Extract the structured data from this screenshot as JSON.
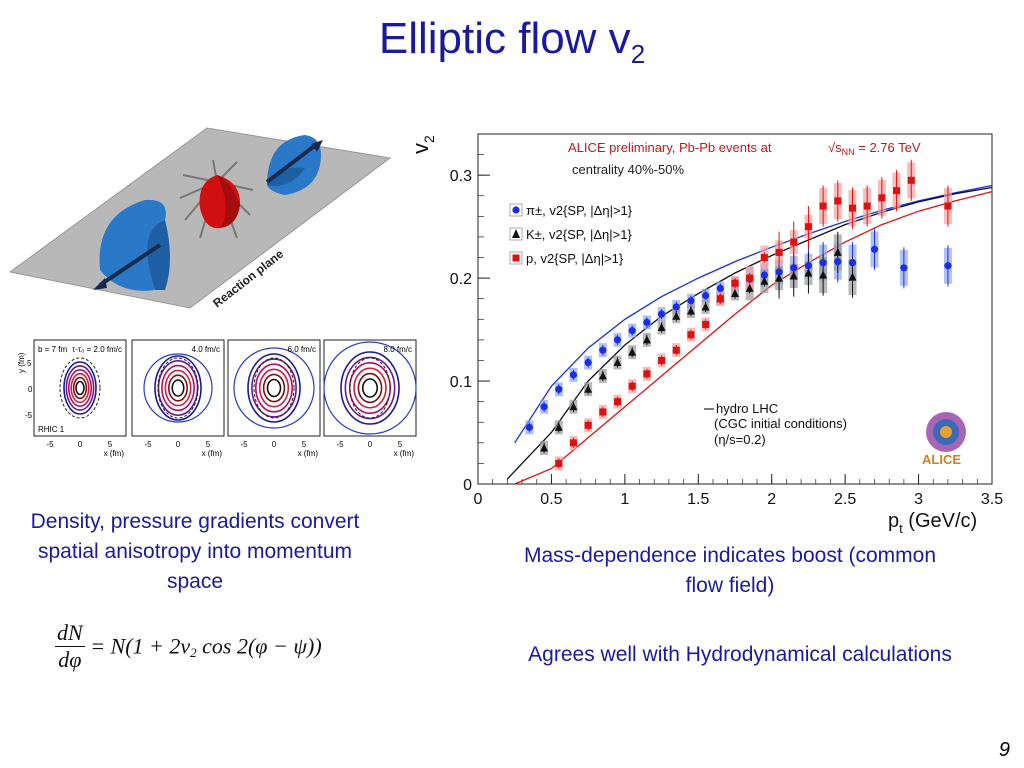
{
  "slide": {
    "title_main": "Elliptic flow v",
    "title_sub": "2",
    "caption_left": "Density, pressure gradients convert spatial anisotropy into momentum space",
    "caption_right": "Mass-dependence indicates boost (common flow field)",
    "caption_bottom": "Agrees well with Hydrodynamical calculations",
    "page_number": "9"
  },
  "formula": {
    "numerator": "dN",
    "denominator": "dφ",
    "rhs": "= N(1 + 2v",
    "rhs_sub": "2",
    "rhs_tail": " cos 2(φ − ψ))"
  },
  "reaction_diagram": {
    "plane_label": "Reaction plane",
    "colors": {
      "plane": "#b5b5b5",
      "nucleus": "#2a78c8",
      "overlap": "#d01010"
    }
  },
  "panels": [
    {
      "label_top": "b = 7 fm",
      "label_time": "τ-τ₀ = 2.0 fm/c",
      "label_bottom": "RHIC 1",
      "xlabel": "x (fm)",
      "ylabel": "y (fm)"
    },
    {
      "label_time": "4.0 fm/c",
      "xlabel": "x (fm)"
    },
    {
      "label_time": "6.0 fm/c",
      "xlabel": "x (fm)"
    },
    {
      "label_time": "8.0 fm/c",
      "xlabel": "x (fm)"
    }
  ],
  "panel_ticks": {
    "x": [
      "-5",
      "0",
      "5"
    ],
    "y": [
      "5",
      "0",
      "-5"
    ]
  },
  "chart_data": {
    "type": "scatter",
    "header": "ALICE preliminary, Pb-Pb events at",
    "energy": "√s",
    "energy_sub": "NN",
    "energy_value": " = 2.76 TeV",
    "centrality": "centrality 40%-50%",
    "xlabel": "p",
    "xlabel_sub": "t",
    "xlabel_unit": " (GeV/c)",
    "ylabel": "v",
    "ylabel_sub": "2",
    "xlim": [
      0,
      3.5
    ],
    "ylim": [
      0,
      0.34
    ],
    "xticks": [
      0,
      0.5,
      1,
      1.5,
      2,
      2.5,
      3,
      3.5
    ],
    "xtick_labels": [
      "0",
      "0.5",
      "1",
      "1.5",
      "2",
      "2.5",
      "3",
      "3.5"
    ],
    "yticks": [
      0,
      0.1,
      0.2,
      0.3
    ],
    "ytick_labels": [
      "0",
      "0.1",
      "0.2",
      "0.3"
    ],
    "series": [
      {
        "name": "π±, v2{SP, |Δη|>1}",
        "color": "#1a2ee6",
        "marker": "circle",
        "x": [
          0.35,
          0.45,
          0.55,
          0.65,
          0.75,
          0.85,
          0.95,
          1.05,
          1.15,
          1.25,
          1.35,
          1.45,
          1.55,
          1.65,
          1.75,
          1.85,
          1.95,
          2.05,
          2.15,
          2.25,
          2.35,
          2.45,
          2.55,
          2.7,
          2.9,
          3.2
        ],
        "y": [
          0.055,
          0.075,
          0.092,
          0.106,
          0.118,
          0.13,
          0.14,
          0.149,
          0.157,
          0.165,
          0.172,
          0.178,
          0.183,
          0.19,
          0.195,
          0.199,
          0.203,
          0.206,
          0.21,
          0.212,
          0.215,
          0.216,
          0.215,
          0.228,
          0.21,
          0.212
        ]
      },
      {
        "name": "K±, v2{SP, |Δη|>1}",
        "color": "#111111",
        "marker": "triangle",
        "x": [
          0.45,
          0.55,
          0.65,
          0.75,
          0.85,
          0.95,
          1.05,
          1.15,
          1.25,
          1.35,
          1.45,
          1.55,
          1.65,
          1.75,
          1.85,
          1.95,
          2.05,
          2.15,
          2.25,
          2.35,
          2.45,
          2.55
        ],
        "y": [
          0.035,
          0.055,
          0.075,
          0.092,
          0.105,
          0.118,
          0.128,
          0.14,
          0.152,
          0.163,
          0.168,
          0.172,
          0.18,
          0.185,
          0.19,
          0.197,
          0.2,
          0.202,
          0.205,
          0.203,
          0.225,
          0.201
        ]
      },
      {
        "name": "p, v2{SP, |Δη|>1}",
        "color": "#e01010",
        "marker": "square",
        "x": [
          0.55,
          0.65,
          0.75,
          0.85,
          0.95,
          1.05,
          1.15,
          1.25,
          1.35,
          1.45,
          1.55,
          1.65,
          1.75,
          1.85,
          1.95,
          2.05,
          2.15,
          2.25,
          2.35,
          2.45,
          2.55,
          2.65,
          2.75,
          2.85,
          2.95,
          3.2
        ],
        "y": [
          0.02,
          0.04,
          0.057,
          0.07,
          0.08,
          0.095,
          0.107,
          0.12,
          0.13,
          0.145,
          0.155,
          0.18,
          0.195,
          0.2,
          0.22,
          0.225,
          0.235,
          0.25,
          0.27,
          0.275,
          0.268,
          0.27,
          0.278,
          0.285,
          0.295,
          0.27
        ]
      }
    ],
    "hydro_curves": [
      {
        "color": "#1a2ee6",
        "x": [
          0.25,
          0.5,
          0.75,
          1,
          1.25,
          1.5,
          1.75,
          2,
          2.25,
          2.5,
          2.75,
          3,
          3.25,
          3.5
        ],
        "y": [
          0.04,
          0.095,
          0.132,
          0.16,
          0.182,
          0.2,
          0.216,
          0.23,
          0.243,
          0.255,
          0.266,
          0.275,
          0.283,
          0.29
        ]
      },
      {
        "color": "#111111",
        "x": [
          0.2,
          0.5,
          0.75,
          1,
          1.25,
          1.5,
          1.75,
          2,
          2.25,
          2.5,
          2.75,
          3,
          3.25,
          3.5
        ],
        "y": [
          0.005,
          0.05,
          0.1,
          0.135,
          0.163,
          0.185,
          0.205,
          0.222,
          0.237,
          0.252,
          0.264,
          0.274,
          0.282,
          0.288
        ]
      },
      {
        "color": "#e01010",
        "x": [
          0.25,
          0.5,
          0.75,
          1,
          1.25,
          1.5,
          1.75,
          2,
          2.25,
          2.5,
          2.75,
          3,
          3.25,
          3.5
        ],
        "y": [
          0.0,
          0.015,
          0.045,
          0.075,
          0.105,
          0.135,
          0.165,
          0.193,
          0.215,
          0.235,
          0.252,
          0.265,
          0.275,
          0.284
        ]
      }
    ],
    "model_legend": [
      "hydro LHC",
      "(CGC initial conditions)",
      "(η/s=0.2)"
    ],
    "logo_text": "ALICE",
    "grid": false,
    "legend_position": "top-left"
  }
}
